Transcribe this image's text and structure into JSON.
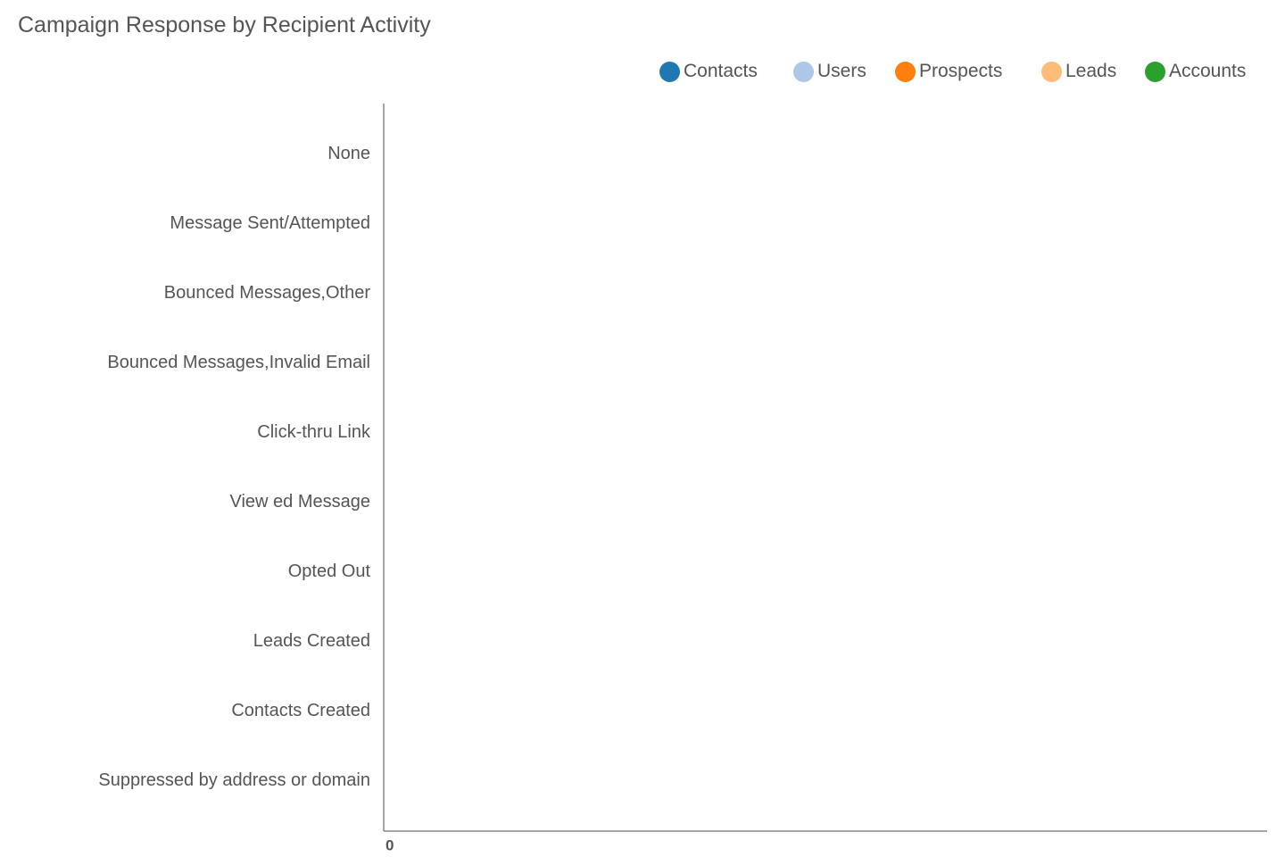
{
  "chart_data": {
    "type": "bar",
    "orientation": "horizontal",
    "stacked": true,
    "title": "Campaign Response by Recipient Activity",
    "xlabel": "",
    "ylabel": "",
    "categories": [
      "None",
      "Message Sent/Attempted",
      "Bounced Messages,Other",
      "Bounced Messages,Invalid Email",
      "Click-thru Link",
      "View ed Message",
      "Opted Out",
      "Leads Created",
      "Contacts Created",
      "Suppressed by address or domain"
    ],
    "series": [
      {
        "name": "Contacts",
        "color": "#1f77b4",
        "values": [
          0,
          0,
          0,
          0,
          0,
          0,
          0,
          0,
          0,
          0
        ]
      },
      {
        "name": "Users",
        "color": "#aec7e8",
        "values": [
          0,
          0,
          0,
          0,
          0,
          0,
          0,
          0,
          0,
          0
        ]
      },
      {
        "name": "Prospects",
        "color": "#ff7f0e",
        "values": [
          0,
          0,
          0,
          0,
          0,
          0,
          0,
          0,
          0,
          0
        ]
      },
      {
        "name": "Leads",
        "color": "#ffbb78",
        "values": [
          0,
          0,
          0,
          0,
          0,
          0,
          0,
          0,
          0,
          0
        ]
      },
      {
        "name": "Accounts",
        "color": "#2ca02c",
        "values": [
          0,
          0,
          0,
          0,
          0,
          0,
          0,
          0,
          0,
          0
        ]
      }
    ],
    "x_ticks": [
      "0"
    ],
    "xlim": [
      0,
      1
    ],
    "grid": false,
    "legend_position": "top-right"
  }
}
